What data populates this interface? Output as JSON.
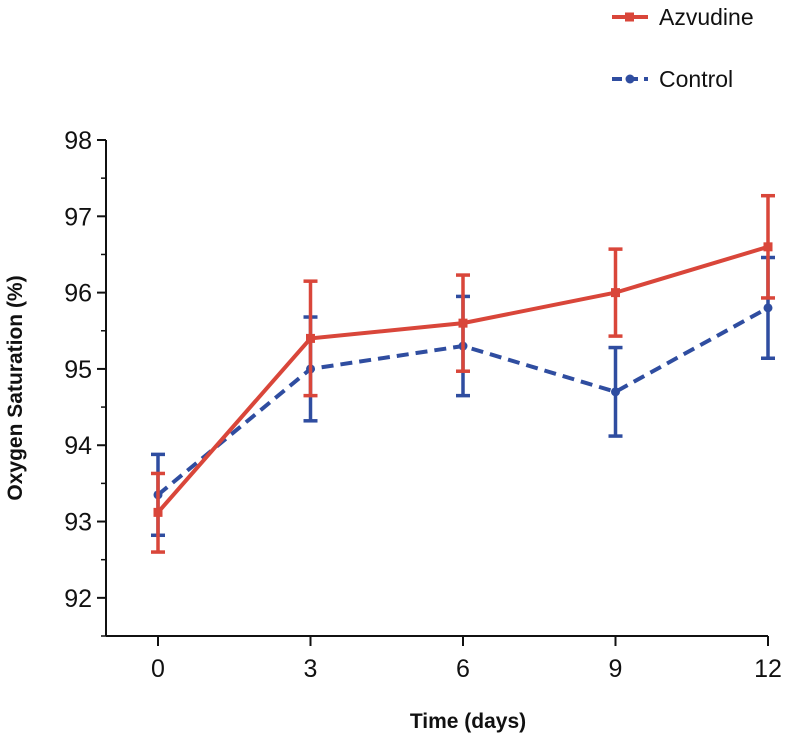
{
  "chart_data": {
    "type": "line",
    "title": "",
    "xlabel": "Time (days)",
    "ylabel": "Oxygen Saturation (%)",
    "x": [
      0,
      3,
      6,
      9,
      12
    ],
    "xticks": [
      0,
      3,
      6,
      9,
      12
    ],
    "xtick_labels": [
      "0",
      "3",
      "6",
      "9",
      "12"
    ],
    "yticks": [
      92,
      93,
      94,
      95,
      96,
      97,
      98
    ],
    "ytick_labels": [
      "92",
      "93",
      "94",
      "95",
      "96",
      "97",
      "98"
    ],
    "xlim": [
      -1,
      12
    ],
    "ylim": [
      91.5,
      98
    ],
    "grid": false,
    "legend_position": "top-right",
    "series": [
      {
        "name": "Azvudine",
        "color": "#d9463a",
        "line_style": "solid",
        "marker": "square",
        "values": [
          93.12,
          95.4,
          95.6,
          96.0,
          96.6
        ],
        "err_low": [
          92.6,
          94.65,
          94.97,
          95.43,
          95.93
        ],
        "err_high": [
          93.63,
          96.15,
          96.23,
          96.57,
          97.27
        ]
      },
      {
        "name": "Control",
        "color": "#2f4da0",
        "line_style": "dashed",
        "marker": "circle",
        "values": [
          93.35,
          95.0,
          95.3,
          94.7,
          95.8
        ],
        "err_low": [
          92.82,
          94.32,
          94.65,
          94.12,
          95.14
        ],
        "err_high": [
          93.88,
          95.68,
          95.95,
          95.28,
          96.46
        ]
      }
    ]
  }
}
